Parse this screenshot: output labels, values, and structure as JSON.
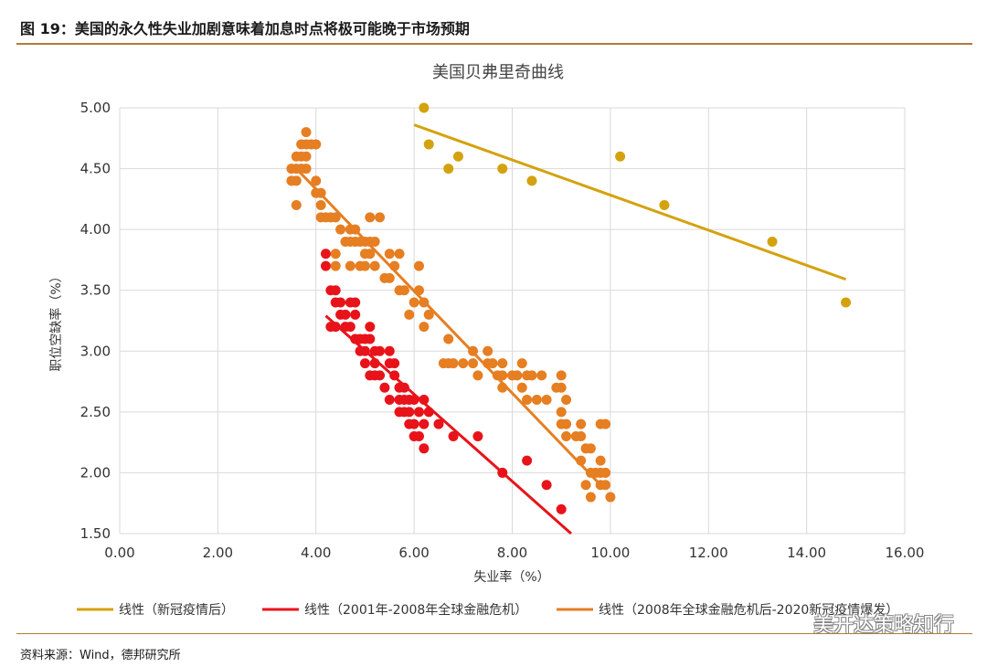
{
  "figure": {
    "title": "图 19：美国的永久性失业加剧意味着加息时点将极可能晚于市场预期",
    "source": "资料来源：Wind，德邦研究所",
    "watermark": "美开达策略知行"
  },
  "colors": {
    "covid": "#D4A20E",
    "crisis2001": "#E8131A",
    "crisis2008": "#E67E22",
    "grid": "#d9d9d9",
    "rule": "#b07a3c"
  },
  "chart_data": {
    "type": "scatter",
    "title": "美国贝弗里奇曲线",
    "xlabel": "失业率（%）",
    "ylabel": "职位空缺率（%）",
    "xlim": [
      0,
      16
    ],
    "ylim": [
      1.5,
      5.0
    ],
    "xticks": [
      "0.00",
      "2.00",
      "4.00",
      "6.00",
      "8.00",
      "10.00",
      "12.00",
      "14.00",
      "16.00"
    ],
    "yticks": [
      "1.50",
      "2.00",
      "2.50",
      "3.00",
      "3.50",
      "4.00",
      "4.50",
      "5.00"
    ],
    "grid": true,
    "legend_position": "bottom",
    "series": [
      {
        "name": "2001-2008",
        "color": "#E8131A",
        "points": [
          [
            4.2,
            3.8
          ],
          [
            4.2,
            3.7
          ],
          [
            4.3,
            3.5
          ],
          [
            4.3,
            3.2
          ],
          [
            4.4,
            3.5
          ],
          [
            4.4,
            3.4
          ],
          [
            4.4,
            3.2
          ],
          [
            4.5,
            3.3
          ],
          [
            4.5,
            3.4
          ],
          [
            4.6,
            3.2
          ],
          [
            4.6,
            3.3
          ],
          [
            4.7,
            3.4
          ],
          [
            4.7,
            3.2
          ],
          [
            4.8,
            3.4
          ],
          [
            4.8,
            3.1
          ],
          [
            4.8,
            3.3
          ],
          [
            4.9,
            3.1
          ],
          [
            4.9,
            3.0
          ],
          [
            5.0,
            3.1
          ],
          [
            5.0,
            3.0
          ],
          [
            5.0,
            2.9
          ],
          [
            5.1,
            3.2
          ],
          [
            5.1,
            3.1
          ],
          [
            5.1,
            2.8
          ],
          [
            5.2,
            3.0
          ],
          [
            5.2,
            2.9
          ],
          [
            5.2,
            2.8
          ],
          [
            5.3,
            3.0
          ],
          [
            5.3,
            2.8
          ],
          [
            5.4,
            2.7
          ],
          [
            5.5,
            2.9
          ],
          [
            5.5,
            3.0
          ],
          [
            5.5,
            2.6
          ],
          [
            5.6,
            2.8
          ],
          [
            5.6,
            2.9
          ],
          [
            5.7,
            2.7
          ],
          [
            5.7,
            2.5
          ],
          [
            5.7,
            2.6
          ],
          [
            5.8,
            2.6
          ],
          [
            5.8,
            2.5
          ],
          [
            5.8,
            2.7
          ],
          [
            5.9,
            2.6
          ],
          [
            5.9,
            2.4
          ],
          [
            5.9,
            2.5
          ],
          [
            6.0,
            2.3
          ],
          [
            6.0,
            2.6
          ],
          [
            6.0,
            2.4
          ],
          [
            6.1,
            2.5
          ],
          [
            6.1,
            2.3
          ],
          [
            6.2,
            2.4
          ],
          [
            6.2,
            2.6
          ],
          [
            6.2,
            2.2
          ],
          [
            6.3,
            2.5
          ],
          [
            6.5,
            2.4
          ],
          [
            6.8,
            2.3
          ],
          [
            7.3,
            2.3
          ],
          [
            7.8,
            2.0
          ],
          [
            8.3,
            2.1
          ],
          [
            8.7,
            1.9
          ],
          [
            9.0,
            1.7
          ]
        ],
        "trend": [
          [
            4.2,
            3.29
          ],
          [
            9.2,
            1.5
          ]
        ]
      },
      {
        "name": "2008-2020",
        "color": "#E67E22",
        "points": [
          [
            3.5,
            4.5
          ],
          [
            3.5,
            4.4
          ],
          [
            3.6,
            4.6
          ],
          [
            3.6,
            4.5
          ],
          [
            3.6,
            4.4
          ],
          [
            3.6,
            4.2
          ],
          [
            3.7,
            4.7
          ],
          [
            3.7,
            4.6
          ],
          [
            3.7,
            4.5
          ],
          [
            3.8,
            4.7
          ],
          [
            3.8,
            4.6
          ],
          [
            3.8,
            4.5
          ],
          [
            3.8,
            4.8
          ],
          [
            3.9,
            4.7
          ],
          [
            4.0,
            4.7
          ],
          [
            4.0,
            4.4
          ],
          [
            4.0,
            4.3
          ],
          [
            4.1,
            4.3
          ],
          [
            4.1,
            4.2
          ],
          [
            4.1,
            4.1
          ],
          [
            4.2,
            4.1
          ],
          [
            4.3,
            4.1
          ],
          [
            4.4,
            4.1
          ],
          [
            4.4,
            3.7
          ],
          [
            4.4,
            3.8
          ],
          [
            4.5,
            4.0
          ],
          [
            4.6,
            3.9
          ],
          [
            4.7,
            3.9
          ],
          [
            4.7,
            3.7
          ],
          [
            4.7,
            4.0
          ],
          [
            4.8,
            3.9
          ],
          [
            4.8,
            4.0
          ],
          [
            4.9,
            3.7
          ],
          [
            4.9,
            3.9
          ],
          [
            5.0,
            3.9
          ],
          [
            5.0,
            3.8
          ],
          [
            5.0,
            3.7
          ],
          [
            5.1,
            3.9
          ],
          [
            5.1,
            4.1
          ],
          [
            5.1,
            3.8
          ],
          [
            5.2,
            3.7
          ],
          [
            5.2,
            3.9
          ],
          [
            5.3,
            4.1
          ],
          [
            5.4,
            3.6
          ],
          [
            5.5,
            3.8
          ],
          [
            5.5,
            3.6
          ],
          [
            5.6,
            3.7
          ],
          [
            5.7,
            3.8
          ],
          [
            5.7,
            3.5
          ],
          [
            5.8,
            3.5
          ],
          [
            5.9,
            3.3
          ],
          [
            6.0,
            3.4
          ],
          [
            6.1,
            3.7
          ],
          [
            6.1,
            3.5
          ],
          [
            6.2,
            3.4
          ],
          [
            6.2,
            3.2
          ],
          [
            6.3,
            3.3
          ],
          [
            6.6,
            2.9
          ],
          [
            6.7,
            2.9
          ],
          [
            6.7,
            3.1
          ],
          [
            6.8,
            2.9
          ],
          [
            7.0,
            2.9
          ],
          [
            7.2,
            3.0
          ],
          [
            7.2,
            2.9
          ],
          [
            7.3,
            2.8
          ],
          [
            7.5,
            3.0
          ],
          [
            7.5,
            2.9
          ],
          [
            7.6,
            2.9
          ],
          [
            7.7,
            2.8
          ],
          [
            7.8,
            2.9
          ],
          [
            7.8,
            2.8
          ],
          [
            7.8,
            2.7
          ],
          [
            8.0,
            2.8
          ],
          [
            8.1,
            2.8
          ],
          [
            8.2,
            2.7
          ],
          [
            8.2,
            2.9
          ],
          [
            8.3,
            2.8
          ],
          [
            8.3,
            2.6
          ],
          [
            8.4,
            2.8
          ],
          [
            8.5,
            2.6
          ],
          [
            8.6,
            2.8
          ],
          [
            8.7,
            2.6
          ],
          [
            8.9,
            2.7
          ],
          [
            9.0,
            2.8
          ],
          [
            9.0,
            2.7
          ],
          [
            9.0,
            2.5
          ],
          [
            9.0,
            2.4
          ],
          [
            9.1,
            2.6
          ],
          [
            9.1,
            2.4
          ],
          [
            9.1,
            2.3
          ],
          [
            9.3,
            2.3
          ],
          [
            9.4,
            2.4
          ],
          [
            9.4,
            2.3
          ],
          [
            9.4,
            2.1
          ],
          [
            9.5,
            2.2
          ],
          [
            9.5,
            1.9
          ],
          [
            9.6,
            2.2
          ],
          [
            9.6,
            1.8
          ],
          [
            9.6,
            2.0
          ],
          [
            9.7,
            2.0
          ],
          [
            9.8,
            2.4
          ],
          [
            9.8,
            2.1
          ],
          [
            9.8,
            2.0
          ],
          [
            9.8,
            1.9
          ],
          [
            9.9,
            2.4
          ],
          [
            9.9,
            2.0
          ],
          [
            9.9,
            1.9
          ],
          [
            10.0,
            1.8
          ]
        ],
        "trend": [
          [
            3.6,
            4.5
          ],
          [
            9.8,
            1.9
          ]
        ]
      },
      {
        "name": "新冠疫情后",
        "color": "#D4A20E",
        "points": [
          [
            6.2,
            5.0
          ],
          [
            6.3,
            4.7
          ],
          [
            6.7,
            4.5
          ],
          [
            6.9,
            4.6
          ],
          [
            7.8,
            4.5
          ],
          [
            8.4,
            4.4
          ],
          [
            10.2,
            4.6
          ],
          [
            11.1,
            4.2
          ],
          [
            13.3,
            3.9
          ],
          [
            14.8,
            3.4
          ]
        ],
        "trend": [
          [
            6.0,
            4.86
          ],
          [
            14.8,
            3.59
          ]
        ]
      }
    ],
    "legend": [
      {
        "label": "线性（新冠疫情后）",
        "color": "#D4A20E"
      },
      {
        "label": "线性（2001年-2008年全球金融危机）",
        "color": "#E8131A"
      },
      {
        "label": "线性（2008年全球金融危机后-2020新冠疫情爆发）",
        "color": "#E67E22"
      }
    ]
  }
}
